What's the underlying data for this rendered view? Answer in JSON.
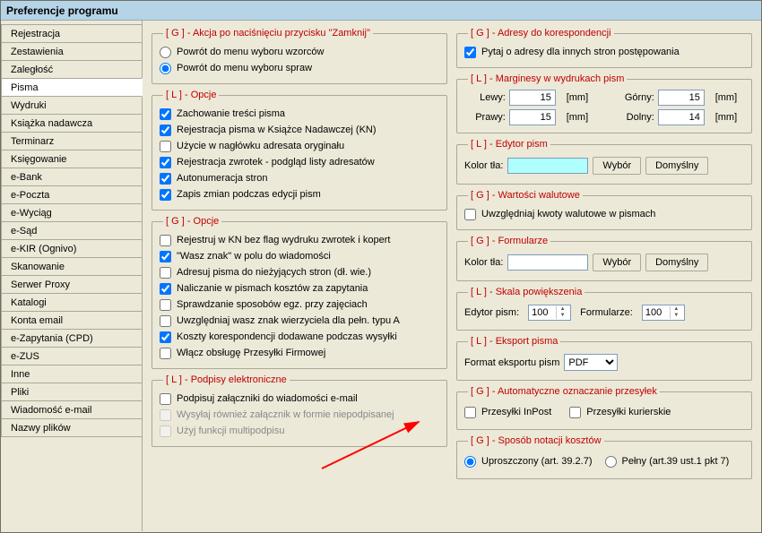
{
  "window": {
    "title": "Preferencje programu"
  },
  "sidebar": {
    "items": [
      {
        "label": "Rejestracja"
      },
      {
        "label": "Zestawienia"
      },
      {
        "label": "Zaległość"
      },
      {
        "label": "Pisma",
        "active": true
      },
      {
        "label": "Wydruki"
      },
      {
        "label": "Książka nadawcza"
      },
      {
        "label": "Terminarz"
      },
      {
        "label": "Księgowanie"
      },
      {
        "label": "e-Bank"
      },
      {
        "label": "e-Poczta"
      },
      {
        "label": "e-Wyciąg"
      },
      {
        "label": "e-Sąd"
      },
      {
        "label": "e-KIR (Ognivo)"
      },
      {
        "label": "Skanowanie"
      },
      {
        "label": "Serwer Proxy"
      },
      {
        "label": "Katalogi"
      },
      {
        "label": "Konta email"
      },
      {
        "label": "e-Zapytania (CPD)"
      },
      {
        "label": "e-ZUS"
      },
      {
        "label": "Inne"
      },
      {
        "label": "Pliki"
      },
      {
        "label": "Wiadomość e-mail"
      },
      {
        "label": "Nazwy plików"
      }
    ]
  },
  "left": {
    "g_close": {
      "legend": "[ G ] - Akcja po naciśnięciu przycisku \"Zamknij\"",
      "r1": "Powrót do menu wyboru wzorców",
      "r2": "Powrót do menu wyboru spraw"
    },
    "l_opts": {
      "legend": "[ L ] - Opcje",
      "c1": "Zachowanie treści pisma",
      "c2": "Rejestracja pisma w Książce Nadawczej (KN)",
      "c3": "Użycie w nagłówku adresata oryginału",
      "c4": "Rejestracja zwrotek - podgląd listy adresatów",
      "c5": "Autonumeracja stron",
      "c6": "Zapis zmian podczas edycji pism"
    },
    "g_opts": {
      "legend": "[ G ] - Opcje",
      "c1": "Rejestruj w KN bez flag wydruku zwrotek i kopert",
      "c2": "\"Wasz znak\" w polu do wiadomości",
      "c3": "Adresuj pisma do nieżyjących stron (dł. wie.)",
      "c4": "Naliczanie w pismach kosztów za zapytania",
      "c5": "Sprawdzanie sposobów egz. przy zajęciach",
      "c6": "Uwzględniaj wasz znak wierzyciela dla pełn. typu A",
      "c7": "Koszty korespondencji dodawane podczas wysyłki",
      "c8": "Włącz obsługę Przesyłki Firmowej"
    },
    "l_sign": {
      "legend": "[ L ] - Podpisy elektroniczne",
      "c1": "Podpisuj załączniki do wiadomości e-mail",
      "c2": "Wysyłaj również załącznik w formie niepodpisanej",
      "c3": "Użyj funkcji multipodpisu"
    }
  },
  "right": {
    "g_addr": {
      "legend": "[ G ] - Adresy do korespondencji",
      "c1": "Pytaj o adresy dla innych stron postępowania"
    },
    "l_marg": {
      "legend": "[ L ] - Marginesy w wydrukach pism",
      "lewy": "Lewy:",
      "prawy": "Prawy:",
      "gorny": "Górny:",
      "dolny": "Dolny:",
      "mm": "[mm]",
      "v_lewy": "15",
      "v_prawy": "15",
      "v_gorny": "15",
      "v_dolny": "14"
    },
    "l_edit": {
      "legend": "[ L ] - Edytor pism",
      "label": "Kolor tła:",
      "btn1": "Wybór",
      "btn2": "Domyślny"
    },
    "g_cur": {
      "legend": "[ G ] - Wartości walutowe",
      "c1": "Uwzględniaj kwoty walutowe w pismach"
    },
    "g_form": {
      "legend": "[ G ] - Formularze",
      "label": "Kolor tła:",
      "btn1": "Wybór",
      "btn2": "Domyślny"
    },
    "l_scale": {
      "legend": "[ L ] - Skala powiększenia",
      "l1": "Edytor pism:",
      "l2": "Formularze:",
      "v1": "100",
      "v2": "100"
    },
    "l_exp": {
      "legend": "[ L ] - Eksport pisma",
      "label": "Format eksportu pism",
      "val": "PDF"
    },
    "g_auto": {
      "legend": "[ G ] - Automatyczne oznaczanie przesyłek",
      "c1": "Przesyłki InPost",
      "c2": "Przesyłki kurierskie"
    },
    "g_cost": {
      "legend": "[ G ] - Sposób notacji kosztów",
      "r1": "Uproszczony (art. 39.2.7)",
      "r2": "Pełny (art.39 ust.1 pkt 7)"
    }
  }
}
